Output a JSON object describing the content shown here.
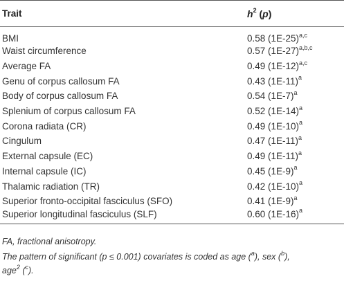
{
  "header": {
    "trait": "Trait",
    "h2_base": "h",
    "h2_sup": "2",
    "h2_rest": " (p)"
  },
  "rows": [
    {
      "trait": "BMI",
      "value": "0.58 (1E-25)",
      "sup": "a,c"
    },
    {
      "trait": "Waist circumference",
      "value": "0.57 (1E-27)",
      "sup": "a,b,c"
    },
    {
      "trait": "Average FA",
      "value": "0.49 (1E-12)",
      "sup": "a,c"
    },
    {
      "trait": "Genu of corpus callosum FA",
      "value": "0.43 (1E-11)",
      "sup": "a"
    },
    {
      "trait": "Body of corpus callosum FA",
      "value": "0.54 (1E-7)",
      "sup": "a"
    },
    {
      "trait": "Splenium of corpus callosum FA",
      "value": "0.52 (1E-14)",
      "sup": "a"
    },
    {
      "trait": "Corona radiata (CR)",
      "value": "0.49 (1E-10)",
      "sup": "a"
    },
    {
      "trait": "Cingulum",
      "value": "0.47 (1E-11)",
      "sup": "a"
    },
    {
      "trait": "External capsule (EC)",
      "value": "0.49 (1E-11)",
      "sup": "a"
    },
    {
      "trait": "Internal capsule (IC)",
      "value": "0.45 (1E-9)",
      "sup": "a"
    },
    {
      "trait": "Thalamic radiation (TR)",
      "value": "0.42 (1E-10)",
      "sup": "a"
    },
    {
      "trait": "Superior fronto-occipital fasciculus (SFO)",
      "value": "0.41 (1E-9)",
      "sup": "a"
    },
    {
      "trait": "Superior longitudinal fasciculus (SLF)",
      "value": "0.60 (1E-16)",
      "sup": "a"
    }
  ],
  "footnotes": {
    "abbrev": "FA, fractional anisotropy.",
    "pattern_1": "The pattern of significant (p ≤ 0.001) covariates is coded as age (",
    "pattern_a": "a",
    "pattern_2": "), sex (",
    "pattern_b": "b",
    "pattern_3": "),",
    "pattern_4": "age",
    "pattern_sup2": "2",
    "pattern_5": " (",
    "pattern_c": "c",
    "pattern_6": ")."
  }
}
